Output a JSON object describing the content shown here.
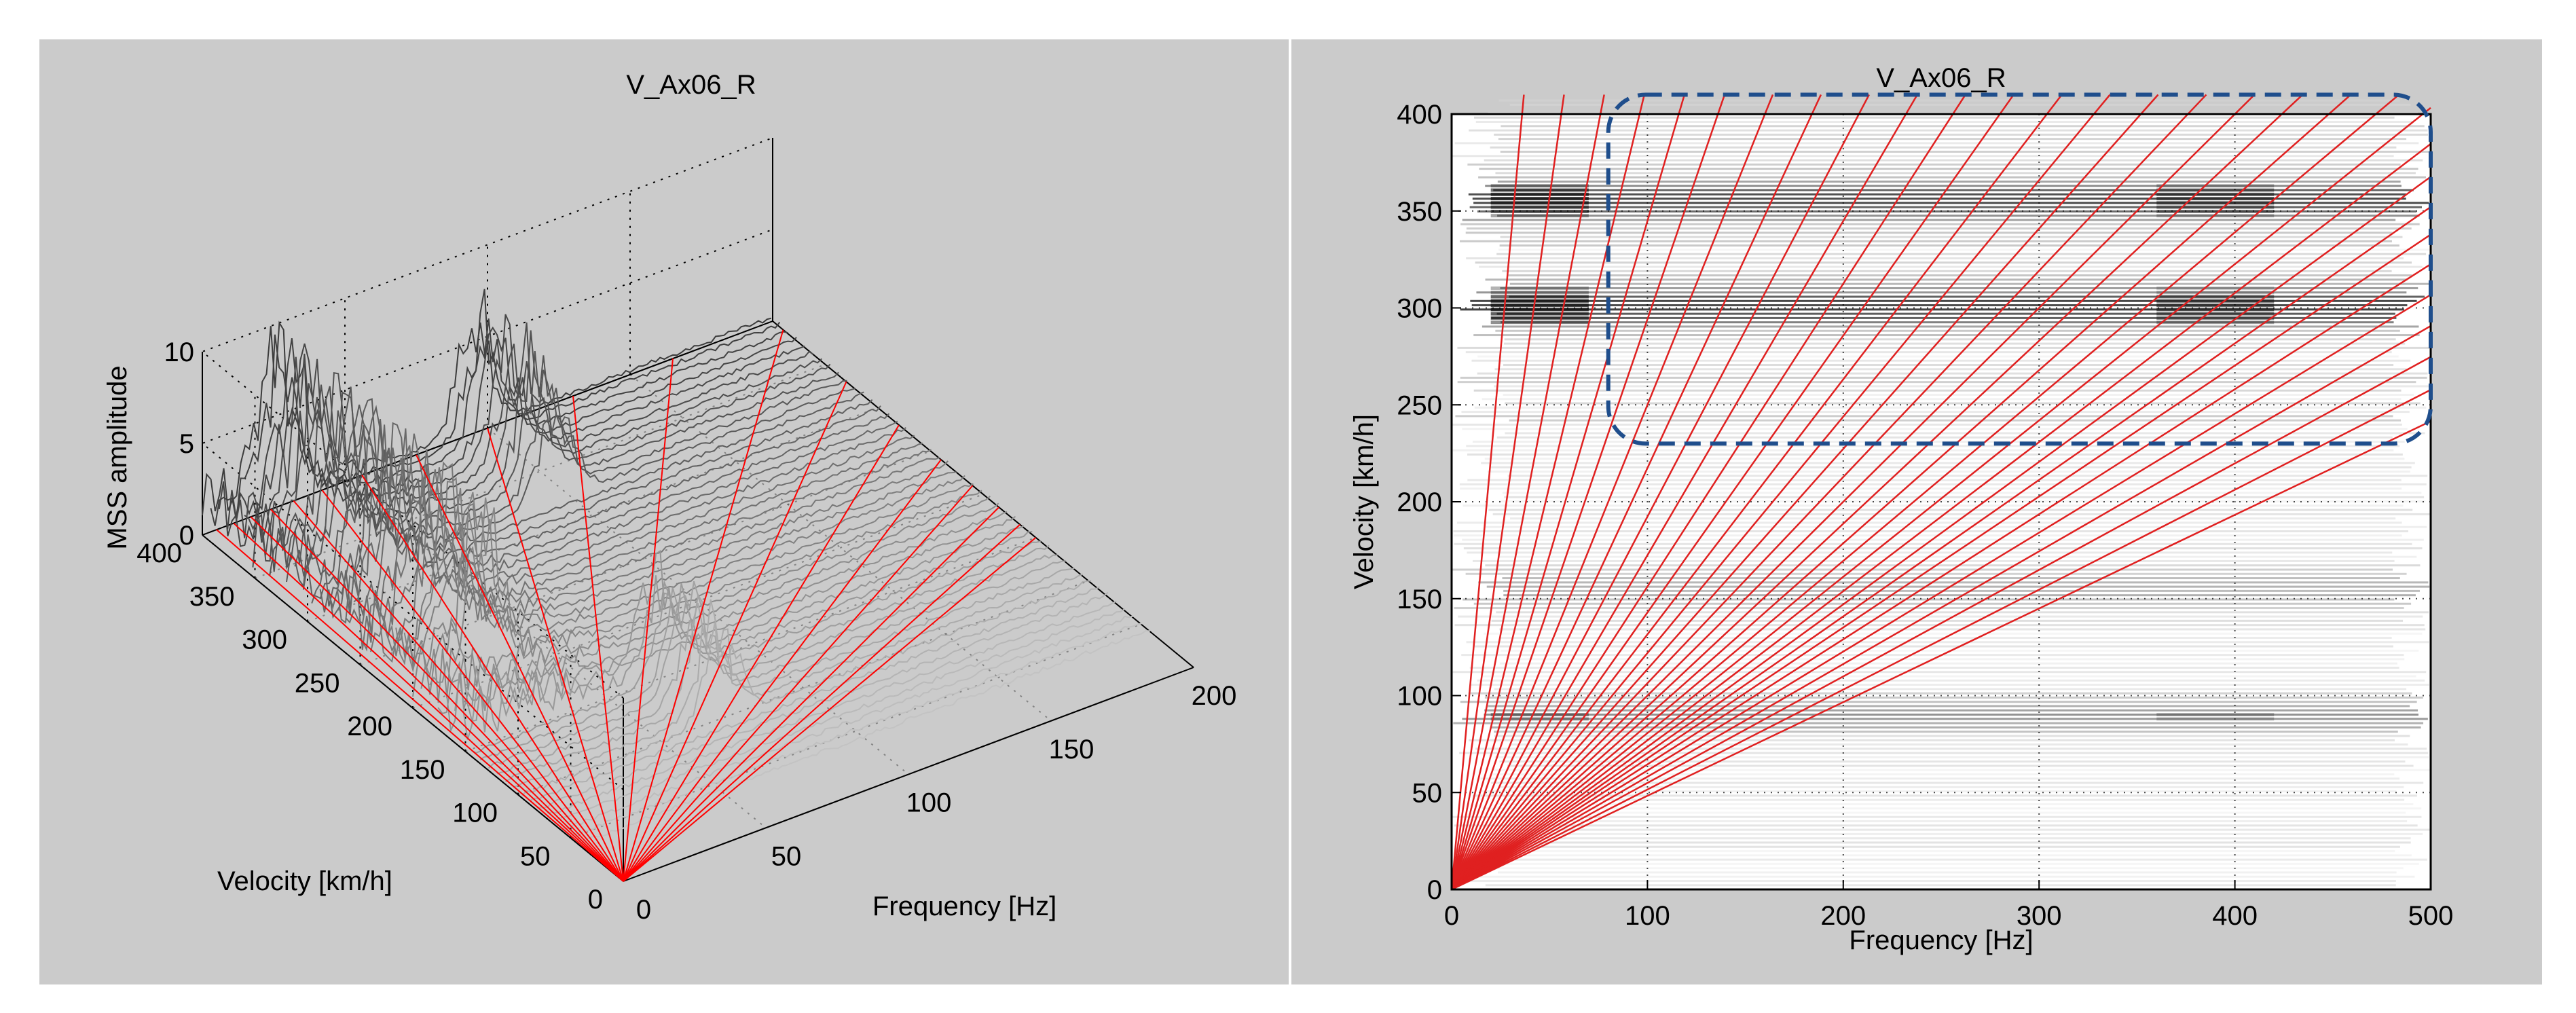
{
  "chart_data": [
    {
      "type": "surface3d",
      "title": "V_Ax06_R",
      "xlabel": "Frequency [Hz]",
      "ylabel": "Velocity [km/h]",
      "zlabel": "MSS amplitude",
      "xlim": [
        0,
        200
      ],
      "ylim": [
        0,
        400
      ],
      "zlim": [
        0,
        10
      ],
      "x_ticks": [
        "0",
        "50",
        "100",
        "150",
        "200"
      ],
      "y_ticks": [
        "0",
        "50",
        "100",
        "150",
        "200",
        "250",
        "300",
        "350",
        "400"
      ],
      "z_ticks": [
        "0",
        "5",
        "10"
      ],
      "grid": true,
      "reference_lines": {
        "color": "#ff0000",
        "description": "Order lines through the origin (f = n*v)",
        "end_points": [
          [
            [
              5,
              400
            ],
            [
              11,
              400
            ],
            [
              17,
              400
            ],
            [
              24,
              400
            ],
            [
              32,
              400
            ],
            [
              42,
              400
            ],
            [
              56,
              400
            ],
            [
              75,
              400
            ],
            [
              100,
              400
            ],
            [
              130,
              400
            ],
            [
              165,
              400
            ],
            [
              200,
              390
            ],
            [
              200,
              330
            ],
            [
              200,
              280
            ],
            [
              200,
              240
            ],
            [
              200,
              210
            ],
            [
              200,
              185
            ],
            [
              200,
              165
            ],
            [
              200,
              150
            ]
          ]
        ]
      },
      "peaks": [
        {
          "frequency": 25,
          "velocity_range": [
            200,
            400
          ],
          "amplitude": 9.5
        },
        {
          "frequency": 95,
          "velocity_range": [
            320,
            400
          ],
          "amplitude": 7.5
        },
        {
          "frequency": 70,
          "velocity_range": [
            90,
            160
          ],
          "amplitude": 6.0
        }
      ]
    },
    {
      "type": "heatmap",
      "title": "V_Ax06_R",
      "xlabel": "Frequency [Hz]",
      "ylabel": "Velocity [km/h]",
      "xlim": [
        0,
        500
      ],
      "ylim": [
        0,
        400
      ],
      "x_ticks": [
        "0",
        "100",
        "200",
        "300",
        "400",
        "500"
      ],
      "y_ticks": [
        "0",
        "50",
        "100",
        "150",
        "200",
        "250",
        "300",
        "350",
        "400"
      ],
      "grid": "dotted",
      "colormap": "gray (white = low, black = high)",
      "bands": [
        {
          "velocity": 300,
          "strength": 0.85
        },
        {
          "velocity": 355,
          "strength": 0.8
        },
        {
          "velocity": 90,
          "strength": 0.45
        },
        {
          "velocity": 155,
          "strength": 0.3
        }
      ],
      "order_line_slopes_hz_per_kmh": [
        0.09,
        0.14,
        0.19,
        0.24,
        0.29,
        0.34,
        0.4,
        0.46,
        0.52,
        0.58,
        0.64,
        0.7,
        0.76,
        0.82,
        0.88,
        0.94,
        1.0,
        1.06,
        1.12,
        1.18,
        1.24,
        1.3,
        1.36,
        1.42,
        1.48,
        1.55,
        1.63,
        1.72,
        1.82,
        1.94,
        2.07
      ],
      "highlight_region": {
        "style": "dashed rounded rectangle",
        "color": "#1f4e8c",
        "frequency_range": [
          80,
          500
        ],
        "velocity_range": [
          230,
          410
        ]
      }
    }
  ]
}
